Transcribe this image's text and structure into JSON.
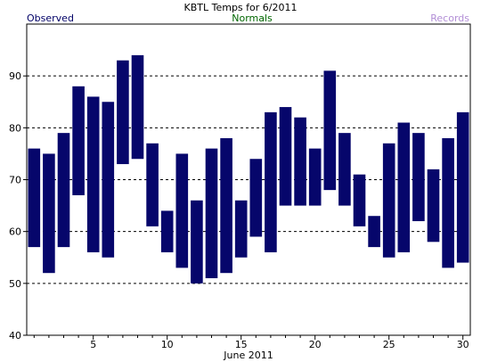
{
  "legend": {
    "observed": "Observed",
    "normals": "Normals",
    "records": "Records"
  },
  "colors": {
    "observed": "#000066",
    "normals": "#006600",
    "records": "#b28ed6",
    "bar": "#06066b",
    "frame": "#000000",
    "grid": "#000000"
  },
  "chart_data": {
    "type": "bar",
    "title": "KBTL Temps for 6/2011",
    "xlabel": "June 2011",
    "ylabel": "",
    "ylim": [
      40,
      100
    ],
    "xlim": [
      0.5,
      30.5
    ],
    "y_ticks": [
      40,
      50,
      60,
      70,
      80,
      90
    ],
    "x_tick_labels": [
      5,
      10,
      15,
      20,
      25,
      30
    ],
    "grid": "dashed horizontal at 50, 60, 70, 80, 90",
    "series": [
      {
        "name": "Observed",
        "days": [
          1,
          2,
          3,
          4,
          5,
          6,
          7,
          8,
          9,
          10,
          11,
          12,
          13,
          14,
          15,
          16,
          17,
          18,
          19,
          20,
          21,
          22,
          23,
          24,
          25,
          26,
          27,
          28,
          29,
          30
        ],
        "high": [
          76,
          75,
          79,
          88,
          86,
          85,
          93,
          94,
          77,
          64,
          75,
          66,
          76,
          78,
          66,
          74,
          83,
          84,
          82,
          76,
          91,
          79,
          71,
          63,
          77,
          81,
          79,
          72,
          78,
          83
        ],
        "low": [
          57,
          52,
          57,
          67,
          56,
          55,
          73,
          74,
          61,
          56,
          53,
          50,
          51,
          52,
          55,
          59,
          56,
          65,
          65,
          65,
          68,
          65,
          61,
          57,
          55,
          56,
          62,
          58,
          53,
          54
        ]
      }
    ]
  }
}
